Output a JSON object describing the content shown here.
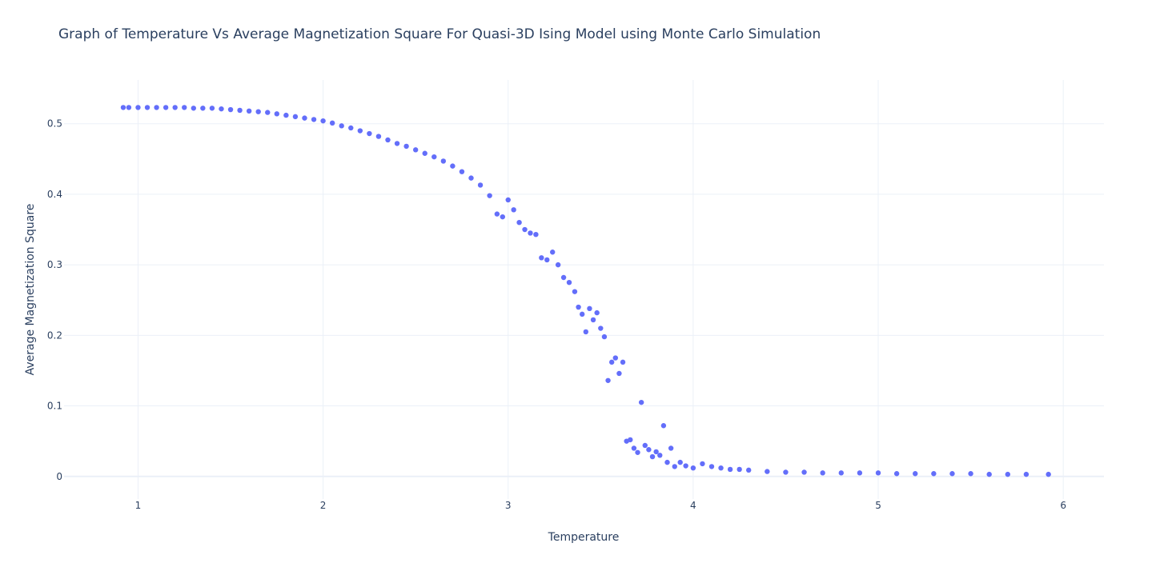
{
  "chart_data": {
    "type": "scatter",
    "title": "Graph of Temperature Vs Average Magnetization Square For Quasi-3D Ising Model using Monte Carlo Simulation",
    "xlabel": "Temperature",
    "ylabel": "Average Magnetization Square",
    "xlim": [
      0.6,
      6.22
    ],
    "ylim": [
      -0.032,
      0.562
    ],
    "x_ticks": [
      1,
      2,
      3,
      4,
      5,
      6
    ],
    "y_ticks": [
      0,
      0.1,
      0.2,
      0.3,
      0.4,
      0.5
    ],
    "grid": true,
    "legend": "none",
    "marker_color": "#636efa",
    "grid_color": "#ebf0f8",
    "text_color": "#2a3f5f",
    "series": [
      {
        "x": [
          0.92,
          0.95,
          1.0,
          1.05,
          1.1,
          1.15,
          1.2,
          1.25,
          1.3,
          1.35,
          1.4,
          1.45,
          1.5,
          1.55,
          1.6,
          1.65,
          1.7,
          1.75,
          1.8,
          1.85,
          1.9,
          1.95,
          2.0,
          2.05,
          2.1,
          2.15,
          2.2,
          2.25,
          2.3,
          2.35,
          2.4,
          2.45,
          2.5,
          2.55,
          2.6,
          2.65,
          2.7,
          2.75,
          2.8,
          2.85,
          2.9,
          2.94,
          2.97,
          3.0,
          3.03,
          3.06,
          3.09,
          3.12,
          3.15,
          3.18,
          3.21,
          3.24,
          3.27,
          3.3,
          3.33,
          3.36,
          3.38,
          3.4,
          3.42,
          3.44,
          3.46,
          3.48,
          3.5,
          3.52,
          3.54,
          3.56,
          3.58,
          3.6,
          3.62,
          3.64,
          3.66,
          3.68,
          3.7,
          3.72,
          3.74,
          3.76,
          3.78,
          3.8,
          3.82,
          3.84,
          3.86,
          3.88,
          3.9,
          3.93,
          3.96,
          4.0,
          4.05,
          4.1,
          4.15,
          4.2,
          4.25,
          4.3,
          4.4,
          4.5,
          4.6,
          4.7,
          4.8,
          4.9,
          5.0,
          5.1,
          5.2,
          5.3,
          5.4,
          5.5,
          5.6,
          5.7,
          5.8,
          5.92
        ],
        "y": [
          0.523,
          0.523,
          0.523,
          0.523,
          0.523,
          0.523,
          0.523,
          0.523,
          0.522,
          0.522,
          0.522,
          0.521,
          0.52,
          0.519,
          0.518,
          0.517,
          0.516,
          0.514,
          0.512,
          0.51,
          0.508,
          0.506,
          0.504,
          0.501,
          0.497,
          0.494,
          0.49,
          0.486,
          0.482,
          0.477,
          0.472,
          0.468,
          0.463,
          0.458,
          0.453,
          0.447,
          0.44,
          0.432,
          0.423,
          0.413,
          0.398,
          0.372,
          0.368,
          0.392,
          0.378,
          0.36,
          0.35,
          0.345,
          0.343,
          0.31,
          0.307,
          0.318,
          0.3,
          0.282,
          0.275,
          0.262,
          0.24,
          0.23,
          0.205,
          0.238,
          0.222,
          0.232,
          0.21,
          0.198,
          0.136,
          0.162,
          0.168,
          0.146,
          0.162,
          0.05,
          0.052,
          0.04,
          0.034,
          0.105,
          0.044,
          0.038,
          0.028,
          0.035,
          0.03,
          0.072,
          0.02,
          0.04,
          0.014,
          0.02,
          0.015,
          0.012,
          0.018,
          0.014,
          0.012,
          0.01,
          0.01,
          0.009,
          0.007,
          0.006,
          0.006,
          0.005,
          0.005,
          0.005,
          0.005,
          0.004,
          0.004,
          0.004,
          0.004,
          0.004,
          0.003,
          0.003,
          0.003,
          0.003
        ]
      }
    ]
  }
}
